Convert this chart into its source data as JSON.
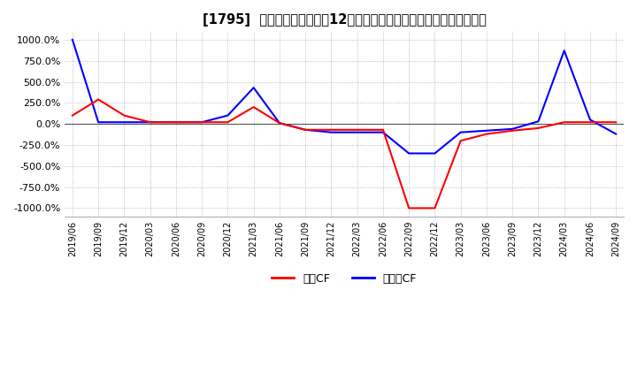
{
  "title": "[1795]  キャッシュフローの12か月移動合計の対前年同期増減率の推移",
  "ylim": [
    -1100,
    1100
  ],
  "yticks": [
    -1000,
    -750,
    -500,
    -250,
    0,
    250,
    500,
    750,
    1000
  ],
  "ytick_labels": [
    "-1000.0%",
    "-750.0%",
    "-500.0%",
    "-250.0%",
    "0.0%",
    "250.0%",
    "500.0%",
    "750.0%",
    "1000.0%"
  ],
  "legend_labels": [
    "営業CF",
    "フリーCF"
  ],
  "legend_colors": [
    "#ff0000",
    "#0000ff"
  ],
  "background_color": "#ffffff",
  "plot_bg_color": "#ffffff",
  "xtick_labels": [
    "2019/06",
    "2019/09",
    "2019/12",
    "2020/03",
    "2020/06",
    "2020/09",
    "2020/12",
    "2021/03",
    "2021/06",
    "2021/09",
    "2021/12",
    "2022/03",
    "2022/06",
    "2022/09",
    "2022/12",
    "2023/03",
    "2023/06",
    "2023/09",
    "2023/12",
    "2024/03",
    "2024/06",
    "2024/09"
  ],
  "red_line": [
    100,
    290,
    100,
    20,
    20,
    20,
    20,
    200,
    10,
    -70,
    -70,
    -70,
    -70,
    -1000,
    -1000,
    -200,
    -120,
    -80,
    -50,
    20,
    20,
    20
  ],
  "blue_line": [
    1000,
    20,
    20,
    20,
    20,
    20,
    100,
    430,
    10,
    -70,
    -100,
    -100,
    -100,
    -350,
    -350,
    -100,
    -80,
    -60,
    30,
    870,
    50,
    -120
  ]
}
